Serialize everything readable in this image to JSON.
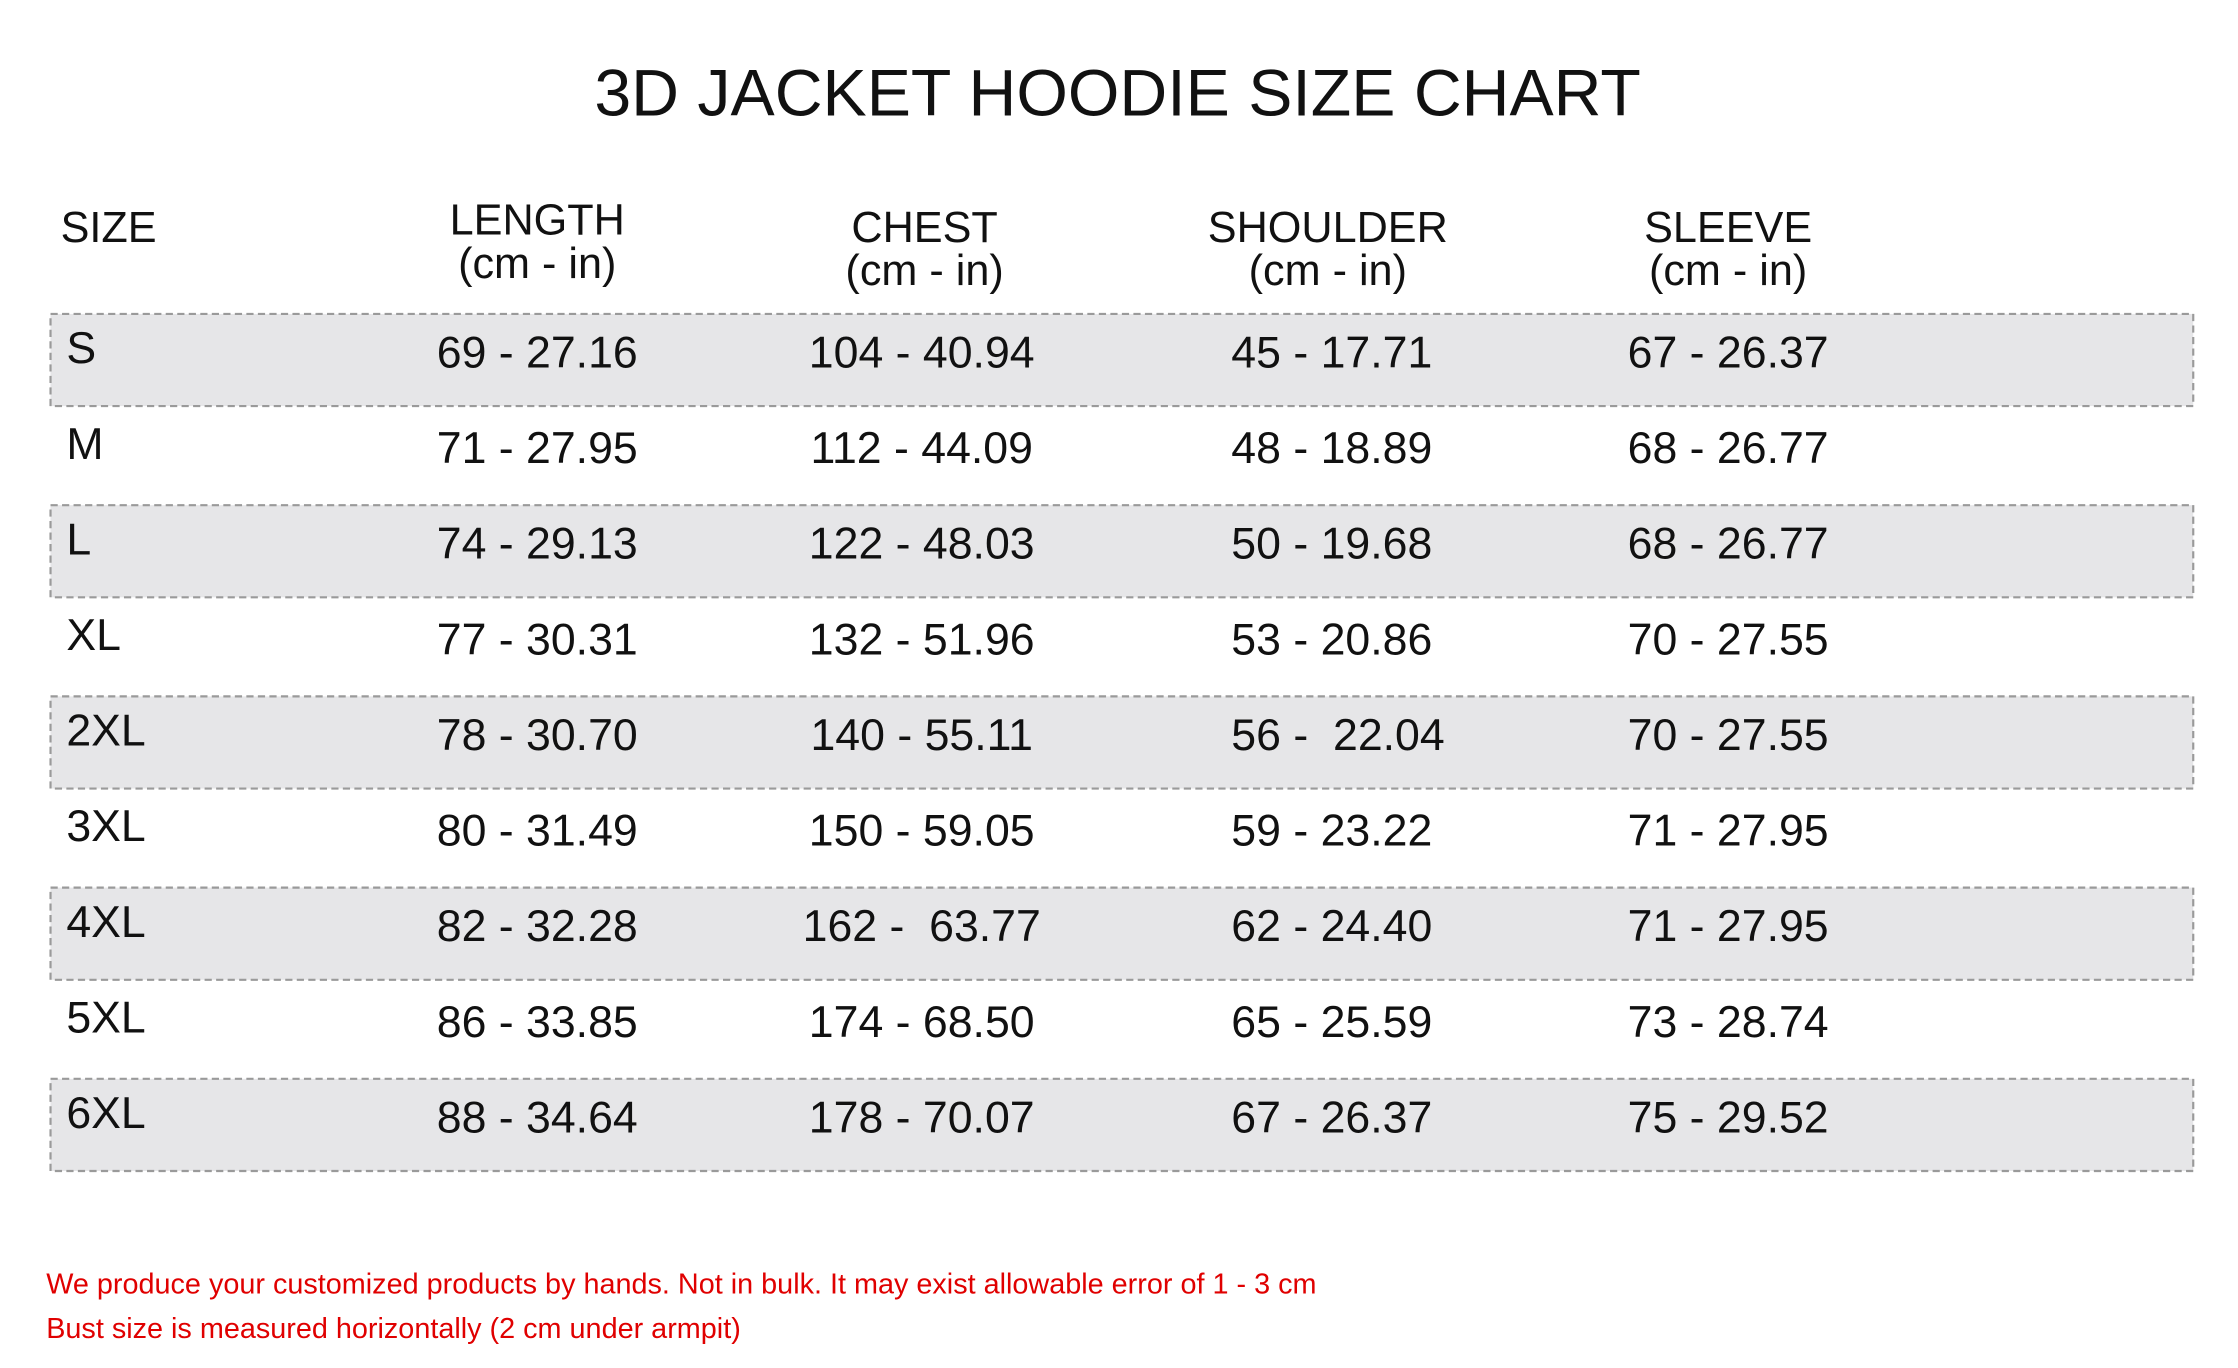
{
  "title": "3D JACKET HOODIE SIZE CHART",
  "table": {
    "header": [
      {
        "name": "SIZE"
      },
      {
        "name": "LENGTH",
        "unit": "(cm - in)"
      },
      {
        "name": "CHEST",
        "unit": "(cm - in)"
      },
      {
        "name": "SHOULDER",
        "unit": "(cm - in)"
      },
      {
        "name": "SLEEVE",
        "unit": "(cm - in)"
      }
    ],
    "rows": [
      [
        "S",
        "69 - 27.16",
        "104 - 40.94",
        "45 - 17.71",
        "67 - 26.37"
      ],
      [
        "M",
        "71 - 27.95",
        "112 - 44.09",
        "48 - 18.89",
        "68 - 26.77"
      ],
      [
        "L",
        "74 - 29.13",
        "122 - 48.03",
        "50 - 19.68",
        "68 - 26.77"
      ],
      [
        "XL",
        "77 - 30.31",
        "132 - 51.96",
        "53 - 20.86",
        "70 - 27.55"
      ],
      [
        "2XL",
        "78 - 30.70",
        "140 - 55.11",
        "56 -  22.04",
        "70 - 27.55"
      ],
      [
        "3XL",
        "80 - 31.49",
        "150 - 59.05",
        "59 - 23.22",
        "71 - 27.95"
      ],
      [
        "4XL",
        "82 - 32.28",
        "162 -  63.77",
        "62 - 24.40",
        "71 - 27.95"
      ],
      [
        "5XL",
        "86 - 33.85",
        "174 - 68.50",
        "65 - 25.59",
        "73 - 28.74"
      ],
      [
        "6XL",
        "88 - 34.64",
        "178 - 70.07",
        "67 - 26.37",
        "75 - 29.52"
      ]
    ]
  },
  "notes": [
    "We produce your customized products by hands. Not in bulk. It may exist allowable error of 1 - 3 cm",
    "Bust size is measured horizontally (2 cm under armpit)"
  ]
}
